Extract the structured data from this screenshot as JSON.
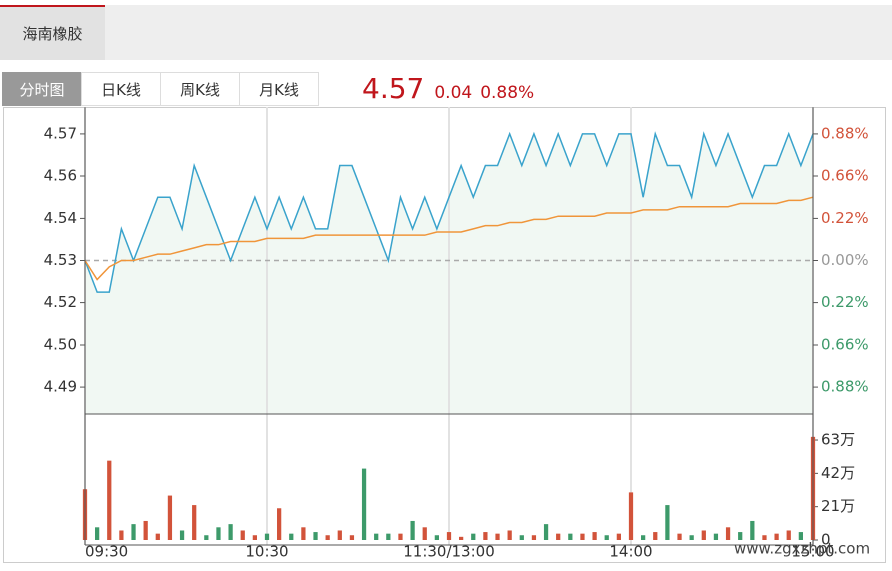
{
  "header": {
    "stock_name": "海南橡胶",
    "tabs": [
      "分时图",
      "日K线",
      "周K线",
      "月K线"
    ],
    "price": "4.57",
    "change": "0.04",
    "change_pct": "0.88%"
  },
  "watermark": "www.zgxzhpt.com",
  "chart_data": {
    "type": "line",
    "x": [
      0,
      4,
      8,
      12,
      16,
      20,
      24,
      28,
      32,
      36,
      40,
      44,
      48,
      52,
      56,
      60,
      64,
      68,
      72,
      76,
      80,
      84,
      88,
      92,
      96,
      100,
      104,
      108,
      112,
      116,
      120,
      124,
      128,
      132,
      136,
      140,
      144,
      148,
      152,
      156,
      160,
      164,
      168,
      172,
      176,
      180,
      184,
      188,
      192,
      196,
      200,
      204,
      208,
      212,
      216,
      220,
      224,
      228,
      232,
      236,
      240
    ],
    "xlim": [
      0,
      240
    ],
    "xticks": [
      {
        "value": 0,
        "label": "09:30"
      },
      {
        "value": 60,
        "label": "10:30"
      },
      {
        "value": 120,
        "label": "11:30/13:00"
      },
      {
        "value": 180,
        "label": "14:00"
      },
      {
        "value": 240,
        "label": "15:00"
      }
    ],
    "ylim": [
      4.4815,
      4.5785
    ],
    "yticks": [
      {
        "value": 4.57,
        "label": "4.57"
      },
      {
        "value": 4.5567,
        "label": "4.56"
      },
      {
        "value": 4.5433,
        "label": "4.54"
      },
      {
        "value": 4.53,
        "label": "4.53"
      },
      {
        "value": 4.5167,
        "label": "4.52"
      },
      {
        "value": 4.5033,
        "label": "4.50"
      },
      {
        "value": 4.49,
        "label": "4.49"
      }
    ],
    "y_right_labels": [
      "0.88%",
      "0.66%",
      "0.22%",
      "0.00%",
      "0.22%",
      "0.66%",
      "0.88%"
    ],
    "base": 4.53,
    "up_color": "#d2533a",
    "down_color": "#3d9a6a",
    "flat_color": "#999999",
    "area_color": "#f1f8f3",
    "series": [
      {
        "name": "price",
        "color": "#3aa3cc",
        "values": [
          4.53,
          4.52,
          4.52,
          4.54,
          4.53,
          4.54,
          4.55,
          4.55,
          4.54,
          4.56,
          4.55,
          4.54,
          4.53,
          4.54,
          4.55,
          4.54,
          4.55,
          4.54,
          4.55,
          4.54,
          4.54,
          4.56,
          4.56,
          4.55,
          4.54,
          4.53,
          4.55,
          4.54,
          4.55,
          4.54,
          4.55,
          4.56,
          4.55,
          4.56,
          4.56,
          4.57,
          4.56,
          4.57,
          4.56,
          4.57,
          4.56,
          4.57,
          4.57,
          4.56,
          4.57,
          4.57,
          4.55,
          4.57,
          4.56,
          4.56,
          4.55,
          4.57,
          4.56,
          4.57,
          4.56,
          4.55,
          4.56,
          4.56,
          4.57,
          4.56,
          4.57
        ]
      },
      {
        "name": "average",
        "color": "#f0953a",
        "values": [
          4.53,
          4.524,
          4.528,
          4.53,
          4.53,
          4.531,
          4.532,
          4.532,
          4.533,
          4.534,
          4.535,
          4.535,
          4.536,
          4.536,
          4.536,
          4.537,
          4.537,
          4.537,
          4.537,
          4.538,
          4.538,
          4.538,
          4.538,
          4.538,
          4.538,
          4.538,
          4.538,
          4.538,
          4.538,
          4.539,
          4.539,
          4.539,
          4.54,
          4.541,
          4.541,
          4.542,
          4.542,
          4.543,
          4.543,
          4.544,
          4.544,
          4.544,
          4.544,
          4.545,
          4.545,
          4.545,
          4.546,
          4.546,
          4.546,
          4.547,
          4.547,
          4.547,
          4.547,
          4.547,
          4.548,
          4.548,
          4.548,
          4.548,
          4.549,
          4.549,
          4.55
        ]
      }
    ],
    "volume": {
      "values": [
        32,
        8,
        50,
        6,
        10,
        12,
        4,
        28,
        6,
        22,
        3,
        8,
        10,
        6,
        3,
        4,
        20,
        4,
        8,
        5,
        3,
        6,
        3,
        45,
        4,
        4,
        4,
        12,
        8,
        3,
        5,
        2,
        4,
        5,
        4,
        6,
        3,
        3,
        10,
        4,
        4,
        4,
        5,
        3,
        4,
        30,
        3,
        5,
        22,
        4,
        3,
        6,
        4,
        8,
        5,
        12,
        3,
        4,
        6,
        5,
        65
      ],
      "ylim": [
        0,
        79.4
      ],
      "yticks": [
        {
          "value": 63,
          "label": "63万"
        },
        {
          "value": 42,
          "label": "42万"
        },
        {
          "value": 21,
          "label": "21万"
        },
        0
      ]
    }
  }
}
